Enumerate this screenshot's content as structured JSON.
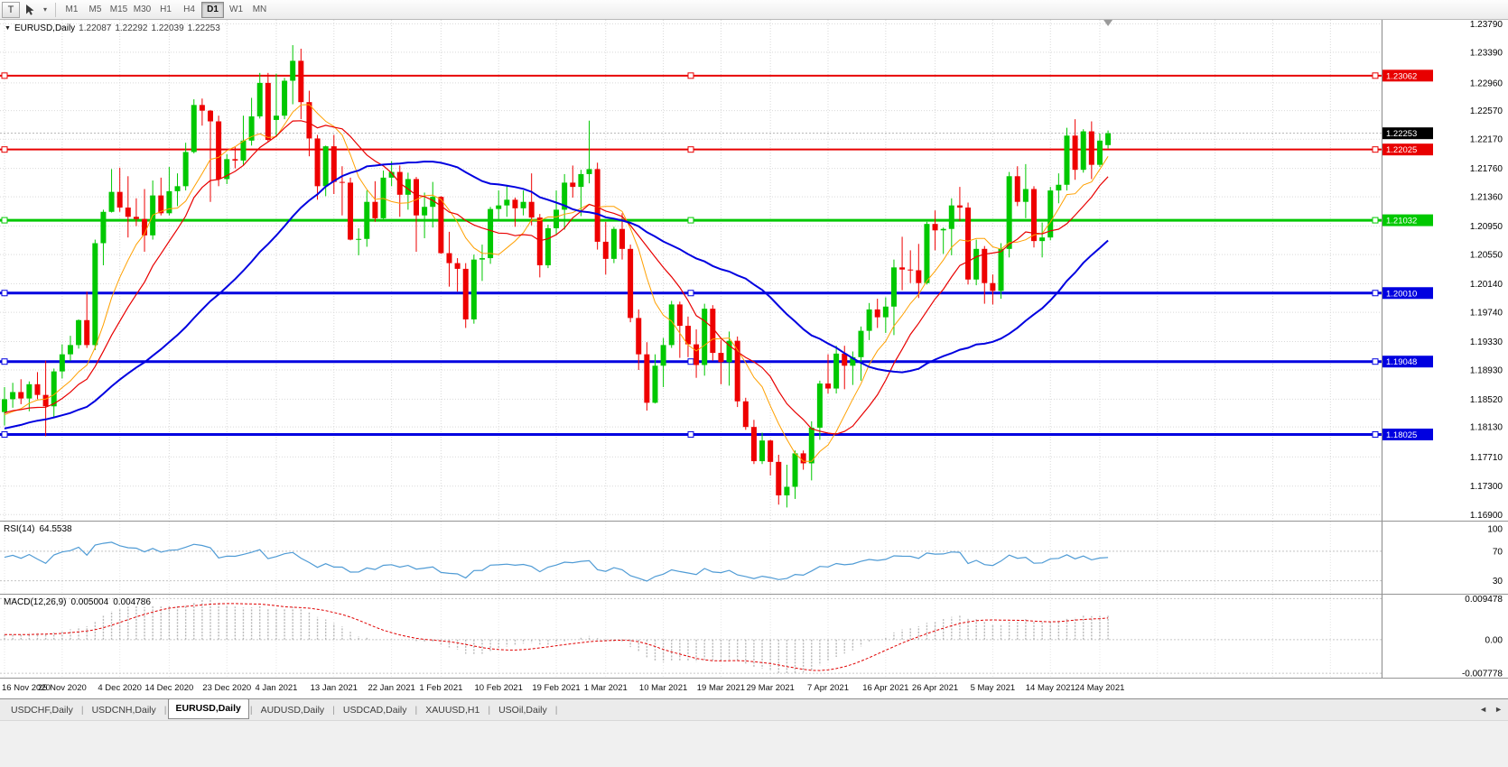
{
  "toolbar": {
    "text_tool_label": "T",
    "dropdown_icon": "▾",
    "timeframes": [
      "M1",
      "M5",
      "M15",
      "M30",
      "H1",
      "H4",
      "D1",
      "W1",
      "MN"
    ],
    "active_timeframe": "D1"
  },
  "chart": {
    "collapse_icon": "▼",
    "symbol_title": "EURUSD,Daily",
    "ohlc": {
      "open": "1.22087",
      "high": "1.22292",
      "low": "1.22039",
      "close": "1.22253"
    },
    "current_price": "1.22253",
    "current_price_badge_color": "#000000",
    "price_ticks": [
      "1.23790",
      "1.23390",
      "1.22960",
      "1.22570",
      "1.22170",
      "1.21760",
      "1.21360",
      "1.20950",
      "1.20550",
      "1.20140",
      "1.19740",
      "1.19330",
      "1.18930",
      "1.18520",
      "1.18130",
      "1.17710",
      "1.17300",
      "1.16900"
    ],
    "hlines": [
      {
        "price": "1.23062",
        "value": 1.23062,
        "color": "#E80000",
        "width": 2
      },
      {
        "price": "1.22025",
        "value": 1.22025,
        "color": "#E80000",
        "width": 2
      },
      {
        "price": "1.21032",
        "value": 1.21032,
        "color": "#00C800",
        "width": 3
      },
      {
        "price": "1.20010",
        "value": 1.2001,
        "color": "#0000E0",
        "width": 3
      },
      {
        "price": "1.19048",
        "value": 1.19048,
        "color": "#0000E0",
        "width": 3
      },
      {
        "price": "1.18025",
        "value": 1.18025,
        "color": "#0000E0",
        "width": 3
      }
    ]
  },
  "chart_data": {
    "type": "candlestick",
    "symbol": "EURUSD",
    "timeframe": "Daily",
    "colors": {
      "bull": "#00C800",
      "bear": "#EE0000"
    },
    "price_axis_range": {
      "top": 1.23845,
      "bottom": 1.16815
    },
    "x_labels": [
      {
        "label": "16 Nov 2020",
        "index": 0
      },
      {
        "label": "25 Nov 2020",
        "index": 7
      },
      {
        "label": "4 Dec 2020",
        "index": 14
      },
      {
        "label": "14 Dec 2020",
        "index": 20
      },
      {
        "label": "23 Dec 2020",
        "index": 27
      },
      {
        "label": "4 Jan 2021",
        "index": 33
      },
      {
        "label": "13 Jan 2021",
        "index": 40
      },
      {
        "label": "22 Jan 2021",
        "index": 47
      },
      {
        "label": "1 Feb 2021",
        "index": 53
      },
      {
        "label": "10 Feb 2021",
        "index": 60
      },
      {
        "label": "19 Feb 2021",
        "index": 67
      },
      {
        "label": "1 Mar 2021",
        "index": 73
      },
      {
        "label": "10 Mar 2021",
        "index": 80
      },
      {
        "label": "19 Mar 2021",
        "index": 87
      },
      {
        "label": "29 Mar 2021",
        "index": 93
      },
      {
        "label": "7 Apr 2021",
        "index": 100
      },
      {
        "label": "16 Apr 2021",
        "index": 107
      },
      {
        "label": "26 Apr 2021",
        "index": 113
      },
      {
        "label": "5 May 2021",
        "index": 120
      },
      {
        "label": "14 May 2021",
        "index": 127
      },
      {
        "label": "24 May 2021",
        "index": 133
      }
    ],
    "moving_averages": [
      {
        "name": "ma-fast",
        "period": 8,
        "color": "#FFA000",
        "width": 1
      },
      {
        "name": "ma-mid",
        "period": 13,
        "color": "#E80000",
        "width": 1.2
      },
      {
        "name": "ma-slow",
        "period": 34,
        "color": "#0000E0",
        "width": 2
      }
    ],
    "ma_seed_closes": [
      1.1782,
      1.1771,
      1.1758,
      1.1746,
      1.1735,
      1.1724,
      1.1741,
      1.1759,
      1.1774,
      1.1786,
      1.1772,
      1.1757,
      1.1743,
      1.1731,
      1.172,
      1.1736,
      1.1752,
      1.1767,
      1.1781,
      1.1793,
      1.1804,
      1.1792,
      1.1779,
      1.1767,
      1.1756,
      1.177,
      1.1784,
      1.1797,
      1.1809,
      1.1819,
      1.1807,
      1.1795,
      1.1784,
      1.1774,
      1.1788,
      1.1801,
      1.1813,
      1.1824,
      1.1833,
      1.1821,
      1.181,
      1.18,
      1.1812,
      1.1823,
      1.1833,
      1.1842,
      1.1849,
      1.1838,
      1.1828,
      1.1819,
      1.1812,
      1.1822,
      1.1832,
      1.1841,
      1.1836
    ],
    "candles": [
      [
        1.1834,
        1.1869,
        1.1815,
        1.1852
      ],
      [
        1.1852,
        1.1875,
        1.184,
        1.1862
      ],
      [
        1.1862,
        1.188,
        1.1845,
        1.1853
      ],
      [
        1.1853,
        1.1877,
        1.1835,
        1.1873
      ],
      [
        1.1873,
        1.189,
        1.1852,
        1.1858
      ],
      [
        1.1858,
        1.1906,
        1.18,
        1.1842
      ],
      [
        1.1842,
        1.1895,
        1.1826,
        1.1891
      ],
      [
        1.1891,
        1.1929,
        1.1881,
        1.1915
      ],
      [
        1.1915,
        1.1941,
        1.1906,
        1.1928
      ],
      [
        1.1928,
        1.1964,
        1.1923,
        1.1963
      ],
      [
        1.1963,
        1.2003,
        1.1924,
        1.1928
      ],
      [
        1.1928,
        1.2076,
        1.1921,
        1.2071
      ],
      [
        1.2071,
        1.2118,
        1.204,
        1.2115
      ],
      [
        1.2115,
        1.2175,
        1.2114,
        1.2143
      ],
      [
        1.2143,
        1.2177,
        1.2115,
        1.2121
      ],
      [
        1.2121,
        1.2165,
        1.2079,
        1.2108
      ],
      [
        1.2108,
        1.2134,
        1.2095,
        1.2105
      ],
      [
        1.2105,
        1.2147,
        1.2059,
        1.2082
      ],
      [
        1.2082,
        1.2159,
        1.2076,
        1.2138
      ],
      [
        1.2138,
        1.2163,
        1.211,
        1.2113
      ],
      [
        1.2113,
        1.2178,
        1.211,
        1.2144
      ],
      [
        1.2144,
        1.2169,
        1.2123,
        1.2151
      ],
      [
        1.2151,
        1.2212,
        1.2145,
        1.2199
      ],
      [
        1.2199,
        1.2273,
        1.2197,
        1.2265
      ],
      [
        1.2265,
        1.2274,
        1.2236,
        1.2257
      ],
      [
        1.2257,
        1.2258,
        1.2129,
        1.2242
      ],
      [
        1.2242,
        1.225,
        1.2151,
        1.2161
      ],
      [
        1.2161,
        1.2196,
        1.2154,
        1.2189
      ],
      [
        1.2189,
        1.2206,
        1.2176,
        1.2187
      ],
      [
        1.2187,
        1.225,
        1.2181,
        1.2215
      ],
      [
        1.2215,
        1.2275,
        1.2208,
        1.2249
      ],
      [
        1.2249,
        1.231,
        1.2246,
        1.2296
      ],
      [
        1.2296,
        1.231,
        1.2214,
        1.2216
      ],
      [
        1.2244,
        1.2309,
        1.222,
        1.225
      ],
      [
        1.225,
        1.2303,
        1.2245,
        1.2299
      ],
      [
        1.2299,
        1.2349,
        1.2266,
        1.2327
      ],
      [
        1.2327,
        1.2344,
        1.2245,
        1.2269
      ],
      [
        1.2269,
        1.2285,
        1.2193,
        1.2218
      ],
      [
        1.2218,
        1.2223,
        1.2132,
        1.2151
      ],
      [
        1.2151,
        1.2208,
        1.2137,
        1.2207
      ],
      [
        1.2207,
        1.2223,
        1.214,
        1.2157
      ],
      [
        1.2157,
        1.2179,
        1.211,
        1.2156
      ],
      [
        1.2156,
        1.2163,
        1.2075,
        1.2076
      ],
      [
        1.2076,
        1.2092,
        1.2054,
        1.2077
      ],
      [
        1.2077,
        1.2145,
        1.2066,
        1.2129
      ],
      [
        1.2129,
        1.2158,
        1.2101,
        1.2106
      ],
      [
        1.2106,
        1.2173,
        1.2105,
        1.2163
      ],
      [
        1.2163,
        1.2186,
        1.2151,
        1.2171
      ],
      [
        1.2171,
        1.218,
        1.2108,
        1.2139
      ],
      [
        1.2139,
        1.217,
        1.2118,
        1.2161
      ],
      [
        1.2161,
        1.2164,
        1.2059,
        1.211
      ],
      [
        1.211,
        1.2142,
        1.2078,
        1.2122
      ],
      [
        1.2122,
        1.2157,
        1.2093,
        1.2136
      ],
      [
        1.2136,
        1.2137,
        1.2056,
        1.2057
      ],
      [
        1.2057,
        1.2087,
        1.201,
        1.2043
      ],
      [
        1.2043,
        1.205,
        1.2003,
        1.2035
      ],
      [
        1.2035,
        1.2043,
        1.1952,
        1.1964
      ],
      [
        1.1964,
        1.2055,
        1.1958,
        1.2048
      ],
      [
        1.2048,
        1.2069,
        1.2018,
        1.205
      ],
      [
        1.205,
        1.2122,
        1.2042,
        1.2119
      ],
      [
        1.2119,
        1.2145,
        1.2105,
        1.2124
      ],
      [
        1.2124,
        1.2151,
        1.2108,
        1.2132
      ],
      [
        1.2132,
        1.2135,
        1.2094,
        1.212
      ],
      [
        1.212,
        1.2145,
        1.211,
        1.2129
      ],
      [
        1.2129,
        1.2169,
        1.2096,
        1.2107
      ],
      [
        1.2107,
        1.2112,
        1.2023,
        1.204
      ],
      [
        1.204,
        1.2097,
        1.2036,
        1.2092
      ],
      [
        1.2092,
        1.2145,
        1.2082,
        1.2118
      ],
      [
        1.2118,
        1.2168,
        1.209,
        1.2156
      ],
      [
        1.2156,
        1.218,
        1.2135,
        1.215
      ],
      [
        1.215,
        1.2174,
        1.2109,
        1.2168
      ],
      [
        1.2168,
        1.2243,
        1.2155,
        1.2175
      ],
      [
        1.2175,
        1.2184,
        1.2062,
        1.2073
      ],
      [
        1.2073,
        1.2101,
        1.2027,
        1.2049
      ],
      [
        1.2049,
        1.2094,
        1.2043,
        1.2091
      ],
      [
        1.2091,
        1.2113,
        1.2048,
        1.2063
      ],
      [
        1.2063,
        1.2069,
        1.196,
        1.1966
      ],
      [
        1.1966,
        1.1978,
        1.1893,
        1.1915
      ],
      [
        1.1915,
        1.1932,
        1.1836,
        1.1847
      ],
      [
        1.1847,
        1.1915,
        1.1846,
        1.1899
      ],
      [
        1.1899,
        1.1938,
        1.1869,
        1.1928
      ],
      [
        1.1928,
        1.199,
        1.1924,
        1.1985
      ],
      [
        1.1985,
        1.1989,
        1.191,
        1.1955
      ],
      [
        1.1955,
        1.1968,
        1.1911,
        1.1929
      ],
      [
        1.1929,
        1.195,
        1.1882,
        1.19
      ],
      [
        1.19,
        1.1986,
        1.1885,
        1.1979
      ],
      [
        1.1979,
        1.1984,
        1.1906,
        1.1917
      ],
      [
        1.1917,
        1.1935,
        1.1873,
        1.1904
      ],
      [
        1.1904,
        1.1947,
        1.1871,
        1.1934
      ],
      [
        1.1934,
        1.194,
        1.1841,
        1.1849
      ],
      [
        1.1849,
        1.1854,
        1.1809,
        1.1813
      ],
      [
        1.1813,
        1.1823,
        1.1761,
        1.1765
      ],
      [
        1.1765,
        1.1805,
        1.1761,
        1.1794
      ],
      [
        1.1794,
        1.1795,
        1.1745,
        1.1764
      ],
      [
        1.1764,
        1.1774,
        1.1704,
        1.1717
      ],
      [
        1.1717,
        1.176,
        1.17,
        1.1729
      ],
      [
        1.1729,
        1.178,
        1.1712,
        1.1776
      ],
      [
        1.1776,
        1.178,
        1.1753,
        1.1762
      ],
      [
        1.1762,
        1.1821,
        1.1738,
        1.1812
      ],
      [
        1.1812,
        1.1878,
        1.1795,
        1.1874
      ],
      [
        1.1874,
        1.1915,
        1.186,
        1.1867
      ],
      [
        1.1867,
        1.1927,
        1.186,
        1.1916
      ],
      [
        1.1916,
        1.1927,
        1.1866,
        1.1899
      ],
      [
        1.1899,
        1.1919,
        1.1872,
        1.1911
      ],
      [
        1.1911,
        1.1954,
        1.1878,
        1.1948
      ],
      [
        1.1948,
        1.1987,
        1.1935,
        1.1978
      ],
      [
        1.1978,
        1.1993,
        1.1952,
        1.1967
      ],
      [
        1.1967,
        1.1995,
        1.1945,
        1.1982
      ],
      [
        1.1982,
        1.2048,
        1.1942,
        1.2037
      ],
      [
        1.2037,
        1.208,
        1.2005,
        1.2034
      ],
      [
        1.2034,
        1.2061,
        1.2015,
        1.2033
      ],
      [
        1.2033,
        1.207,
        1.1994,
        1.2015
      ],
      [
        1.2015,
        1.2101,
        1.2013,
        1.2098
      ],
      [
        1.2098,
        1.2117,
        1.2061,
        1.2089
      ],
      [
        1.2089,
        1.2093,
        1.2056,
        1.2091
      ],
      [
        1.2091,
        1.2134,
        1.2054,
        1.2124
      ],
      [
        1.2124,
        1.215,
        1.2102,
        1.2121
      ],
      [
        1.2121,
        1.2128,
        1.2013,
        1.202
      ],
      [
        1.202,
        1.2076,
        1.2012,
        1.2063
      ],
      [
        1.2063,
        1.2067,
        1.1986,
        1.2015
      ],
      [
        1.2015,
        1.2027,
        1.1985,
        1.2004
      ],
      [
        1.2004,
        1.2071,
        1.1993,
        1.2063
      ],
      [
        1.2063,
        1.2171,
        1.2051,
        1.2165
      ],
      [
        1.2165,
        1.2179,
        1.2123,
        1.2129
      ],
      [
        1.2129,
        1.2182,
        1.2106,
        1.2147
      ],
      [
        1.2147,
        1.2151,
        1.2065,
        1.2074
      ],
      [
        1.2074,
        1.21,
        1.2051,
        1.2079
      ],
      [
        1.2079,
        1.215,
        1.2075,
        1.2145
      ],
      [
        1.2145,
        1.2169,
        1.2127,
        1.2153
      ],
      [
        1.2153,
        1.2233,
        1.2145,
        1.2222
      ],
      [
        1.2222,
        1.2245,
        1.216,
        1.2174
      ],
      [
        1.2174,
        1.2231,
        1.217,
        1.2228
      ],
      [
        1.2228,
        1.2242,
        1.2161,
        1.2181
      ],
      [
        1.2181,
        1.2225,
        1.2178,
        1.2215
      ],
      [
        1.22087,
        1.22292,
        1.22039,
        1.22253
      ]
    ]
  },
  "rsi": {
    "name": "RSI(14)",
    "value": "64.5538",
    "period": 14,
    "ticks": [
      "100",
      "70",
      "30"
    ],
    "levels": [
      70,
      30
    ],
    "color": "#4F9BD5"
  },
  "macd": {
    "name": "MACD(12,26,9)",
    "values": [
      "0.005004",
      "0.004786"
    ],
    "ticks": [
      "0.009478",
      "0.00",
      "-0.007778"
    ],
    "histogram_color": "#B8B8B8",
    "signal_color": "#E00000"
  },
  "tabs": {
    "items": [
      "USDCHF,Daily",
      "USDCNH,Daily",
      "EURUSD,Daily",
      "AUDUSD,Daily",
      "USDCAD,Daily",
      "XAUUSD,H1",
      "USOil,Daily"
    ],
    "active": "EURUSD,Daily",
    "scroll_left": "◄",
    "scroll_right": "►"
  }
}
